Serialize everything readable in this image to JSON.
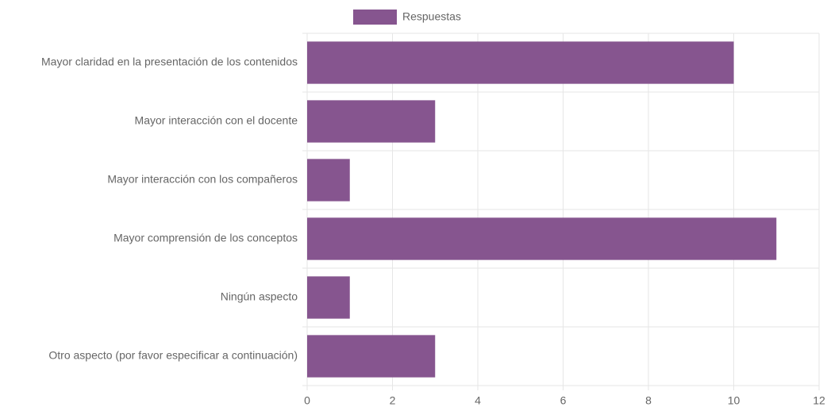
{
  "chart_data": {
    "type": "bar",
    "orientation": "horizontal",
    "categories": [
      "Mayor claridad en la presentación de los contenidos",
      "Mayor interacción con el docente",
      "Mayor interacción con los compañeros",
      "Mayor comprensión de los conceptos",
      "Ningún aspecto",
      "Otro aspecto (por favor especificar a continuación)"
    ],
    "series": [
      {
        "name": "Respuestas",
        "color": "#86558f",
        "values": [
          10,
          3,
          1,
          11,
          1,
          3
        ]
      }
    ],
    "xlim": [
      0,
      12
    ],
    "xticks": [
      0,
      2,
      4,
      6,
      8,
      10,
      12
    ],
    "grid": true,
    "legend": "top"
  }
}
